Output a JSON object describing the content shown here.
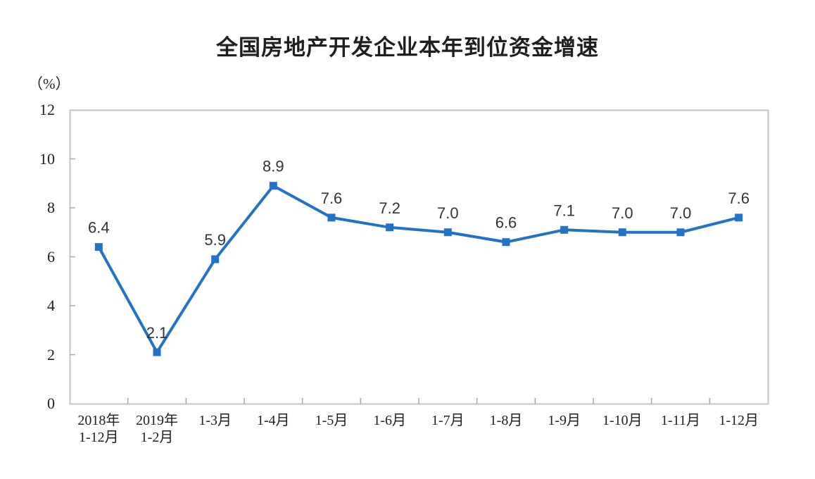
{
  "chart_data": {
    "type": "line",
    "title": "全国房地产开发企业本年到位资金增速",
    "unit_label": "（%）",
    "categories": [
      "2018年\n1-12月",
      "2019年\n1-2月",
      "1-3月",
      "1-4月",
      "1-5月",
      "1-6月",
      "1-7月",
      "1-8月",
      "1-9月",
      "1-10月",
      "1-11月",
      "1-12月"
    ],
    "values": [
      6.4,
      2.1,
      5.9,
      8.9,
      7.6,
      7.2,
      7.0,
      6.6,
      7.1,
      7.0,
      7.0,
      7.6
    ],
    "y_ticks": [
      0,
      2,
      4,
      6,
      8,
      10,
      12
    ],
    "ylim": [
      0,
      12
    ],
    "xlabel": "",
    "ylabel": "（%）",
    "grid": false,
    "legend": false,
    "marker": "square",
    "line_color": "#2272C8",
    "data_label_color": "#333333",
    "border_color": "#C6C6C6",
    "tick_color": "#A8A8A8",
    "text_color": "#1f1f1f"
  }
}
